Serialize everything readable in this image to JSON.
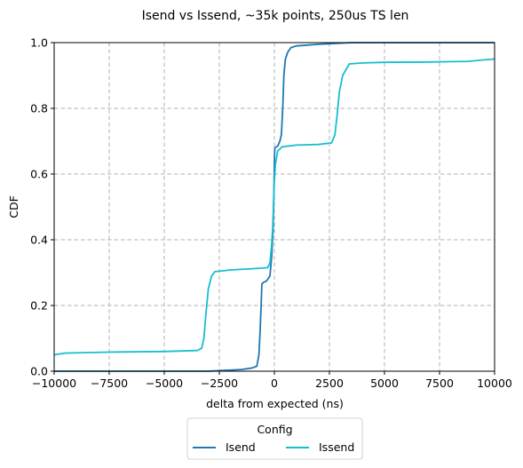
{
  "chart_data": {
    "type": "line",
    "title": "Isend vs Issend, ~35k points, 250us TS len",
    "xlabel": "delta from expected (ns)",
    "ylabel": "CDF",
    "xlim": [
      -10000,
      10000
    ],
    "ylim": [
      0,
      1
    ],
    "x_ticks": [
      -10000,
      -7500,
      -5000,
      -2500,
      0,
      2500,
      5000,
      7500,
      10000
    ],
    "x_tick_labels": [
      "−10000",
      "−7500",
      "−5000",
      "−2500",
      "0",
      "2500",
      "5000",
      "7500",
      "10000"
    ],
    "y_ticks": [
      0,
      0.2,
      0.4,
      0.6,
      0.8,
      1.0
    ],
    "y_tick_labels": [
      "0.0",
      "0.2",
      "0.4",
      "0.6",
      "0.8",
      "1.0"
    ],
    "grid": true,
    "grid_style": "dashed",
    "legend": {
      "title": "Config",
      "placement": "below-center"
    },
    "series": [
      {
        "name": "Isend",
        "color": "#1f77b4",
        "points": [
          [
            -10000,
            0.0
          ],
          [
            -3000,
            0.0
          ],
          [
            -1500,
            0.005
          ],
          [
            -1000,
            0.01
          ],
          [
            -800,
            0.015
          ],
          [
            -700,
            0.05
          ],
          [
            -650,
            0.12
          ],
          [
            -600,
            0.2
          ],
          [
            -570,
            0.265
          ],
          [
            -500,
            0.27
          ],
          [
            -350,
            0.275
          ],
          [
            -200,
            0.29
          ],
          [
            -120,
            0.35
          ],
          [
            -60,
            0.43
          ],
          [
            -20,
            0.55
          ],
          [
            0,
            0.64
          ],
          [
            20,
            0.68
          ],
          [
            150,
            0.685
          ],
          [
            250,
            0.7
          ],
          [
            320,
            0.72
          ],
          [
            380,
            0.8
          ],
          [
            430,
            0.9
          ],
          [
            500,
            0.95
          ],
          [
            600,
            0.97
          ],
          [
            750,
            0.985
          ],
          [
            1000,
            0.99
          ],
          [
            2000,
            0.995
          ],
          [
            3500,
            1.0
          ],
          [
            10000,
            1.0
          ]
        ]
      },
      {
        "name": "Issend",
        "color": "#17becf",
        "points": [
          [
            -10000,
            0.05
          ],
          [
            -9500,
            0.055
          ],
          [
            -7500,
            0.058
          ],
          [
            -5000,
            0.06
          ],
          [
            -3500,
            0.063
          ],
          [
            -3300,
            0.07
          ],
          [
            -3200,
            0.1
          ],
          [
            -3100,
            0.18
          ],
          [
            -3000,
            0.25
          ],
          [
            -2850,
            0.29
          ],
          [
            -2700,
            0.303
          ],
          [
            -2000,
            0.308
          ],
          [
            -1000,
            0.312
          ],
          [
            -300,
            0.315
          ],
          [
            -200,
            0.33
          ],
          [
            -130,
            0.38
          ],
          [
            -80,
            0.43
          ],
          [
            -40,
            0.5
          ],
          [
            0,
            0.58
          ],
          [
            50,
            0.63
          ],
          [
            150,
            0.67
          ],
          [
            350,
            0.683
          ],
          [
            1000,
            0.688
          ],
          [
            2000,
            0.69
          ],
          [
            2600,
            0.695
          ],
          [
            2750,
            0.72
          ],
          [
            2850,
            0.78
          ],
          [
            2950,
            0.85
          ],
          [
            3100,
            0.9
          ],
          [
            3400,
            0.935
          ],
          [
            4000,
            0.938
          ],
          [
            5000,
            0.94
          ],
          [
            7000,
            0.941
          ],
          [
            8800,
            0.943
          ],
          [
            9400,
            0.947
          ],
          [
            10000,
            0.95
          ]
        ]
      }
    ]
  }
}
